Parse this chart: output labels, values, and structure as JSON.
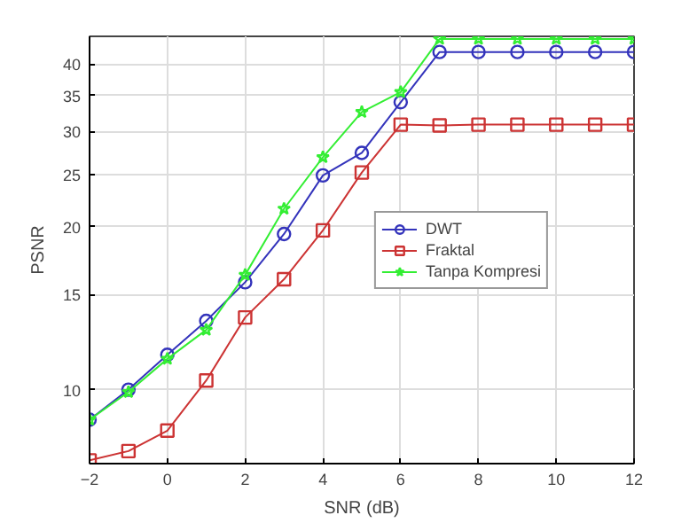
{
  "chart_data": {
    "type": "line",
    "xlabel": "SNR (dB)",
    "ylabel": "PSNR",
    "log": "y",
    "grid": true,
    "legend": "right",
    "line_style": "solid",
    "x": [
      -2,
      -1,
      0,
      1,
      2,
      3,
      4,
      5,
      6,
      7,
      8,
      9,
      10,
      11,
      12
    ],
    "xlim": [
      -2,
      12
    ],
    "xticks": [
      -2,
      0,
      2,
      4,
      6,
      8,
      10,
      12
    ],
    "ylim": [
      7.3,
      45
    ],
    "yticks": [
      10,
      15,
      20,
      25,
      30,
      35,
      40
    ],
    "series": [
      {
        "name": "DWT",
        "color": "#3333bb",
        "marker": "circle",
        "values": [
          8.8,
          10.0,
          11.6,
          13.4,
          15.8,
          19.4,
          24.9,
          27.4,
          34.0,
          42.1,
          42.1,
          42.1,
          42.1,
          42.1,
          42.1
        ]
      },
      {
        "name": "Fraktal",
        "color": "#cc3333",
        "marker": "square",
        "values": [
          7.4,
          7.7,
          8.4,
          10.4,
          13.6,
          16.0,
          19.7,
          25.2,
          30.9,
          30.8,
          30.9,
          30.9,
          30.9,
          30.9,
          30.9
        ]
      },
      {
        "name": "Tanpa Kompresi",
        "color": "#33ee33",
        "marker": "star",
        "values": [
          8.8,
          9.9,
          11.4,
          12.9,
          16.3,
          21.6,
          26.9,
          32.6,
          35.5,
          44.5,
          44.5,
          44.5,
          44.5,
          44.5,
          44.5
        ]
      }
    ]
  }
}
